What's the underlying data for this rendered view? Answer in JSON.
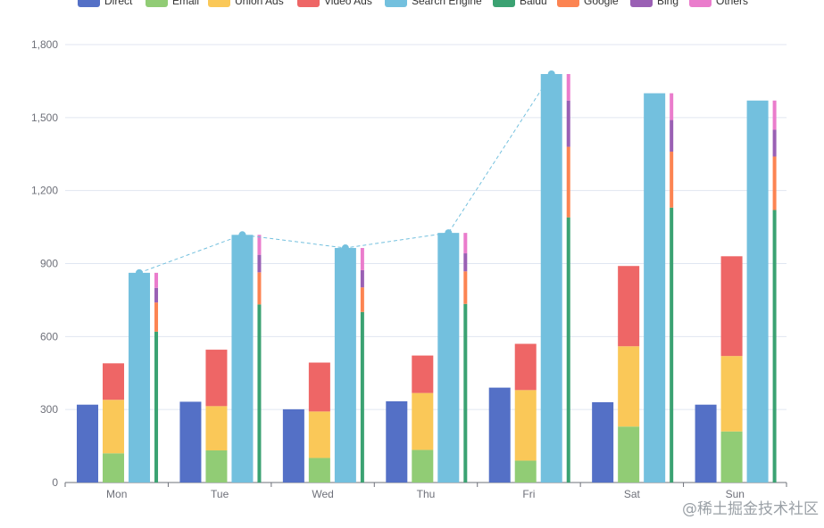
{
  "chart_data": {
    "type": "bar",
    "subtype": "grouped-stacked-bar-with-line",
    "categories": [
      "Mon",
      "Tue",
      "Wed",
      "Thu",
      "Fri",
      "Sat",
      "Sun"
    ],
    "ylim": [
      0,
      1800
    ],
    "yticks": [
      0,
      300,
      600,
      900,
      1200,
      1500,
      1800
    ],
    "ytick_labels": [
      "0",
      "300",
      "600",
      "900",
      "1,200",
      "1,500",
      "1,800"
    ],
    "grid": true,
    "legend_position": "top",
    "legend": [
      "Direct",
      "Email",
      "Union Ads",
      "Video Ads",
      "Search Engine",
      "Baidu",
      "Google",
      "Bing",
      "Others"
    ],
    "series": [
      {
        "name": "Direct",
        "stack": "direct",
        "color": "#5470c6",
        "values": [
          320,
          332,
          301,
          334,
          390,
          330,
          320
        ]
      },
      {
        "name": "Email",
        "stack": "ad",
        "color": "#91cc75",
        "values": [
          120,
          132,
          101,
          134,
          90,
          230,
          210
        ]
      },
      {
        "name": "Union Ads",
        "stack": "ad",
        "color": "#fac858",
        "values": [
          220,
          182,
          191,
          234,
          290,
          330,
          310
        ]
      },
      {
        "name": "Video Ads",
        "stack": "ad",
        "color": "#ee6666",
        "values": [
          150,
          232,
          201,
          154,
          190,
          330,
          410
        ]
      },
      {
        "name": "Search Engine",
        "stack": "search",
        "color": "#73c0de",
        "values": [
          862,
          1018,
          964,
          1026,
          1679,
          1600,
          1570
        ]
      },
      {
        "name": "Baidu",
        "stack": "search-detail",
        "color": "#3ba272",
        "values": [
          620,
          732,
          701,
          734,
          1090,
          1130,
          1120
        ]
      },
      {
        "name": "Google",
        "stack": "search-detail",
        "color": "#fc8452",
        "values": [
          120,
          132,
          101,
          134,
          290,
          230,
          220
        ]
      },
      {
        "name": "Bing",
        "stack": "search-detail",
        "color": "#9a60b4",
        "values": [
          60,
          72,
          71,
          74,
          190,
          130,
          110
        ]
      },
      {
        "name": "Others",
        "stack": "search-detail",
        "color": "#ea7ccc",
        "values": [
          62,
          82,
          91,
          84,
          109,
          110,
          120
        ]
      }
    ],
    "line": {
      "name": "Search Engine trend",
      "color": "#73c0de",
      "values": [
        862,
        1018,
        964,
        1026,
        1679
      ]
    }
  },
  "watermark": "@稀土掘金技术社区"
}
